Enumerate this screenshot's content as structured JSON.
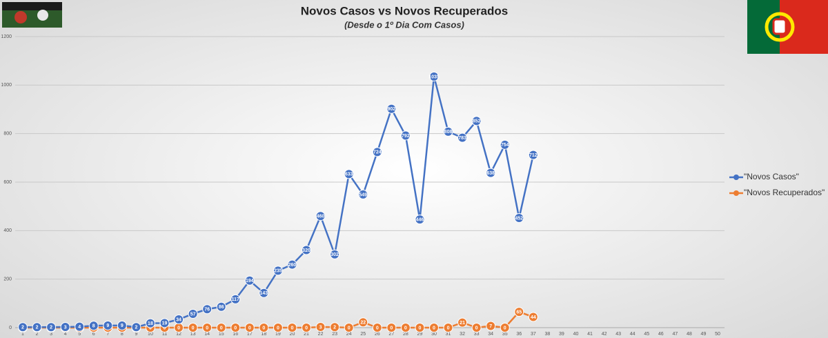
{
  "chart_data": {
    "type": "line",
    "title": "Novos Casos vs Novos Recuperados",
    "subtitle": "(Desde o 1º Dia Com Casos)",
    "categories": [
      "1",
      "2",
      "3",
      "4",
      "5",
      "6",
      "7",
      "8",
      "9",
      "10",
      "11",
      "12",
      "13",
      "14",
      "15",
      "16",
      "17",
      "18",
      "19",
      "20",
      "21",
      "22",
      "23",
      "24",
      "25",
      "26",
      "27",
      "28",
      "29",
      "30",
      "31",
      "32",
      "33",
      "34",
      "35",
      "36",
      "37",
      "38",
      "39",
      "40",
      "41",
      "42",
      "43",
      "44",
      "45",
      "46",
      "47",
      "48",
      "49",
      "50"
    ],
    "series": [
      {
        "name": "\"Novos Casos\"",
        "color": "#4472c4",
        "values": [
          2,
          2,
          2,
          3,
          4,
          8,
          9,
          9,
          2,
          18,
          19,
          34,
          57,
          76,
          86,
          117,
          194,
          143,
          235,
          260,
          320,
          460,
          302,
          633,
          549,
          724,
          902,
          792,
          446,
          1035,
          808,
          783,
          852,
          638,
          754,
          452,
          712,
          null,
          null,
          null,
          null,
          null,
          null,
          null,
          null,
          null,
          null,
          null,
          null,
          null
        ]
      },
      {
        "name": "\"Novos Recuperados\"",
        "color": "#ed7d31",
        "values": [
          0,
          0,
          0,
          0,
          0,
          0,
          0,
          0,
          0,
          0,
          0,
          0,
          0,
          0,
          0,
          0,
          0,
          0,
          0,
          0,
          0,
          3,
          2,
          0,
          22,
          0,
          0,
          0,
          0,
          0,
          0,
          21,
          0,
          7,
          0,
          65,
          44,
          null,
          null,
          null,
          null,
          null,
          null,
          null,
          null,
          null,
          null,
          null,
          null,
          null
        ]
      }
    ],
    "ylim": [
      0,
      1200
    ],
    "yticks": [
      0,
      200,
      400,
      600,
      800,
      1000,
      1200
    ],
    "grid": true,
    "legend": "right"
  }
}
